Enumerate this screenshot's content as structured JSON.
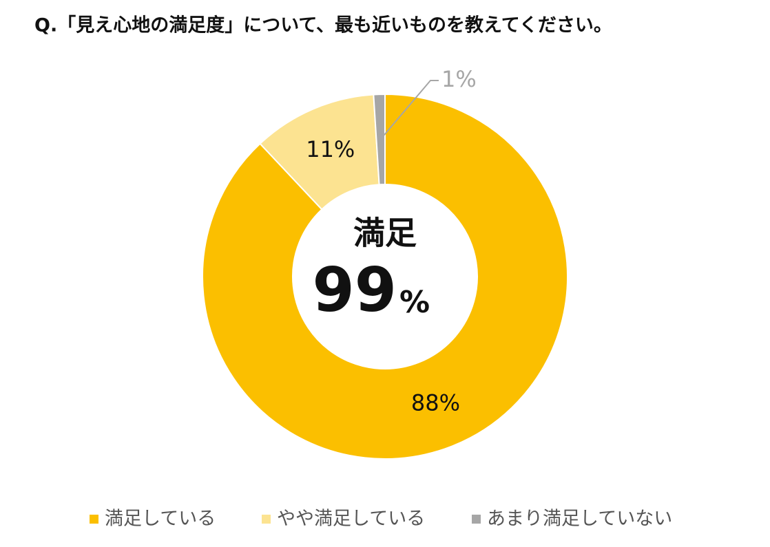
{
  "chart_data": {
    "type": "donut",
    "title": "Q.「見え心地の満足度」について、最も近いものを教えてください。",
    "categories": [
      "満足している",
      "やや満足している",
      "あまり満足していない"
    ],
    "values": [
      88,
      11,
      1
    ],
    "value_labels": [
      "88%",
      "11%",
      "1%"
    ],
    "colors": [
      "#FBBF00",
      "#FCE391",
      "#A6A6A6"
    ],
    "center_label": "満足",
    "center_value": 99,
    "center_unit": "%",
    "legend": "bottom"
  }
}
